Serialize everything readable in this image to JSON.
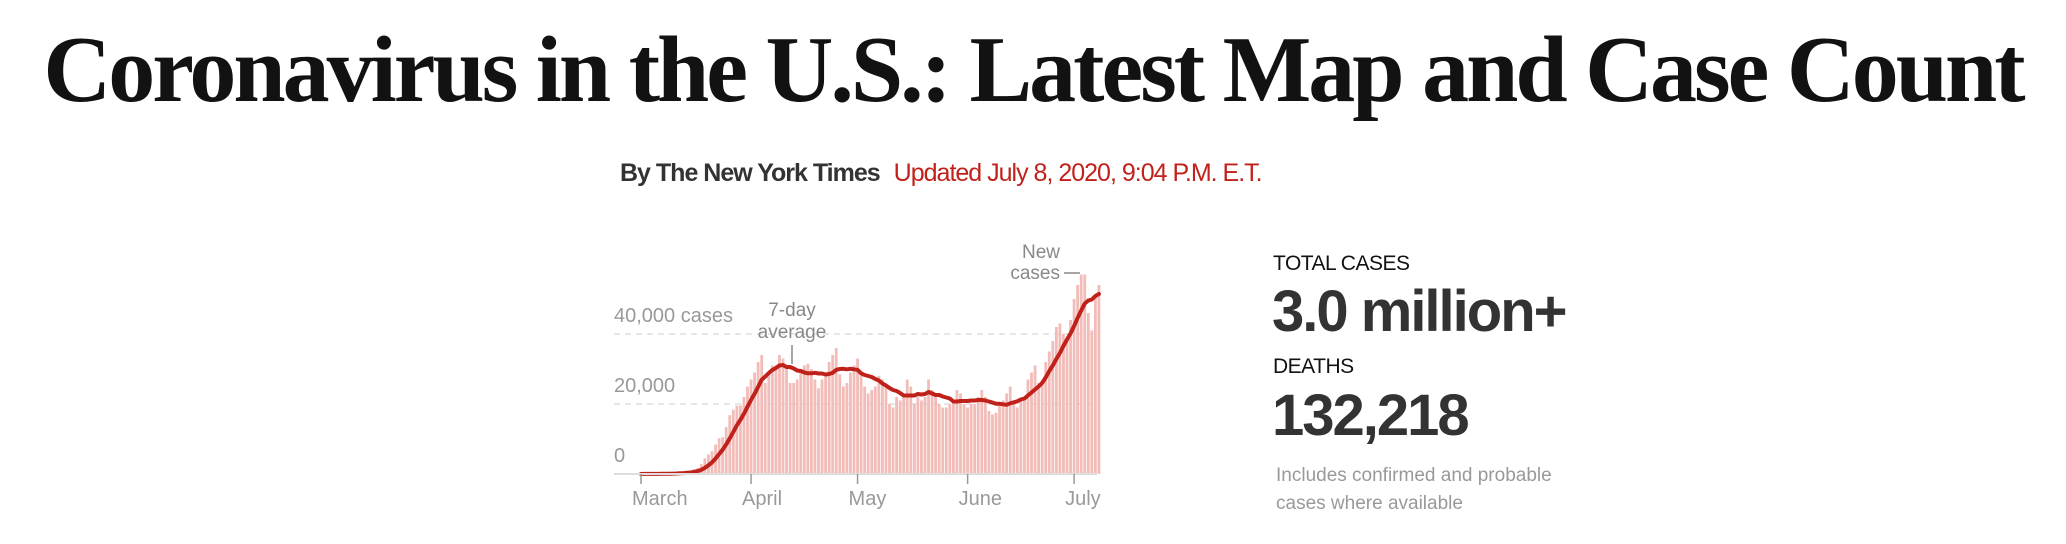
{
  "header": {
    "title": "Coronavirus in the U.S.: Latest Map and Case Count",
    "byline": "By The New York Times",
    "updated": "Updated July 8, 2020, 9:04 P.M. E.T."
  },
  "stats": {
    "total_cases_label": "TOTAL CASES",
    "total_cases_value": "3.0 million+",
    "deaths_label": "DEATHS",
    "deaths_value": "132,218",
    "note": "Includes confirmed and probable cases where available"
  },
  "colors": {
    "accent": "#c0211a",
    "bars": "#f2bcb8",
    "text": "#333333",
    "muted": "#999999"
  },
  "chart_data": {
    "type": "bar",
    "start_date": "2020-03-01",
    "end_date": "2020-07-08",
    "ylim": [
      0,
      57000
    ],
    "yticks": [
      {
        "value": 0,
        "label": "0"
      },
      {
        "value": 20000,
        "label": "20,000"
      },
      {
        "value": 40000,
        "label": "40,000 cases"
      }
    ],
    "xticks": [
      {
        "date": "2020-03-01",
        "label": "March"
      },
      {
        "date": "2020-04-01",
        "label": "April"
      },
      {
        "date": "2020-05-01",
        "label": "May"
      },
      {
        "date": "2020-06-01",
        "label": "June"
      },
      {
        "date": "2020-07-01",
        "label": "July"
      }
    ],
    "grid": "dashed horizontal",
    "annotations": {
      "average": [
        "7-day",
        "average"
      ],
      "bars": [
        "New",
        "cases"
      ]
    },
    "series": [
      {
        "name": "New cases",
        "type": "bar",
        "values": [
          10,
          20,
          20,
          30,
          60,
          80,
          100,
          100,
          140,
          200,
          300,
          400,
          500,
          700,
          800,
          1400,
          1700,
          2800,
          4500,
          5600,
          6500,
          8400,
          10200,
          10500,
          13400,
          16800,
          18400,
          19500,
          19600,
          22000,
          25000,
          27000,
          29000,
          32000,
          34000,
          26000,
          29000,
          31000,
          31000,
          34000,
          33000,
          30000,
          26000,
          26000,
          27000,
          30000,
          31000,
          31500,
          30000,
          27000,
          24500,
          27000,
          28000,
          32000,
          34000,
          36000,
          28500,
          25000,
          26000,
          29000,
          31000,
          33000,
          29000,
          25000,
          23000,
          24000,
          25000,
          28000,
          27000,
          25000,
          20000,
          19000,
          22000,
          21000,
          23000,
          27000,
          25000,
          20000,
          22000,
          21000,
          22000,
          27000,
          24000,
          22000,
          20000,
          19000,
          19000,
          20000,
          21000,
          24000,
          23000,
          20000,
          19000,
          20000,
          20000,
          22000,
          24000,
          22000,
          18000,
          17000,
          17500,
          20000,
          21000,
          23000,
          25000,
          20000,
          19000,
          21000,
          22000,
          27000,
          29000,
          31000,
          26000,
          26000,
          32000,
          35000,
          38000,
          42000,
          43000,
          40000,
          39000,
          44000,
          50000,
          54000,
          57000,
          57000,
          46000,
          41000,
          51000,
          54000
        ]
      },
      {
        "name": "7-day average",
        "type": "line",
        "derived_from": "New cases"
      }
    ]
  }
}
